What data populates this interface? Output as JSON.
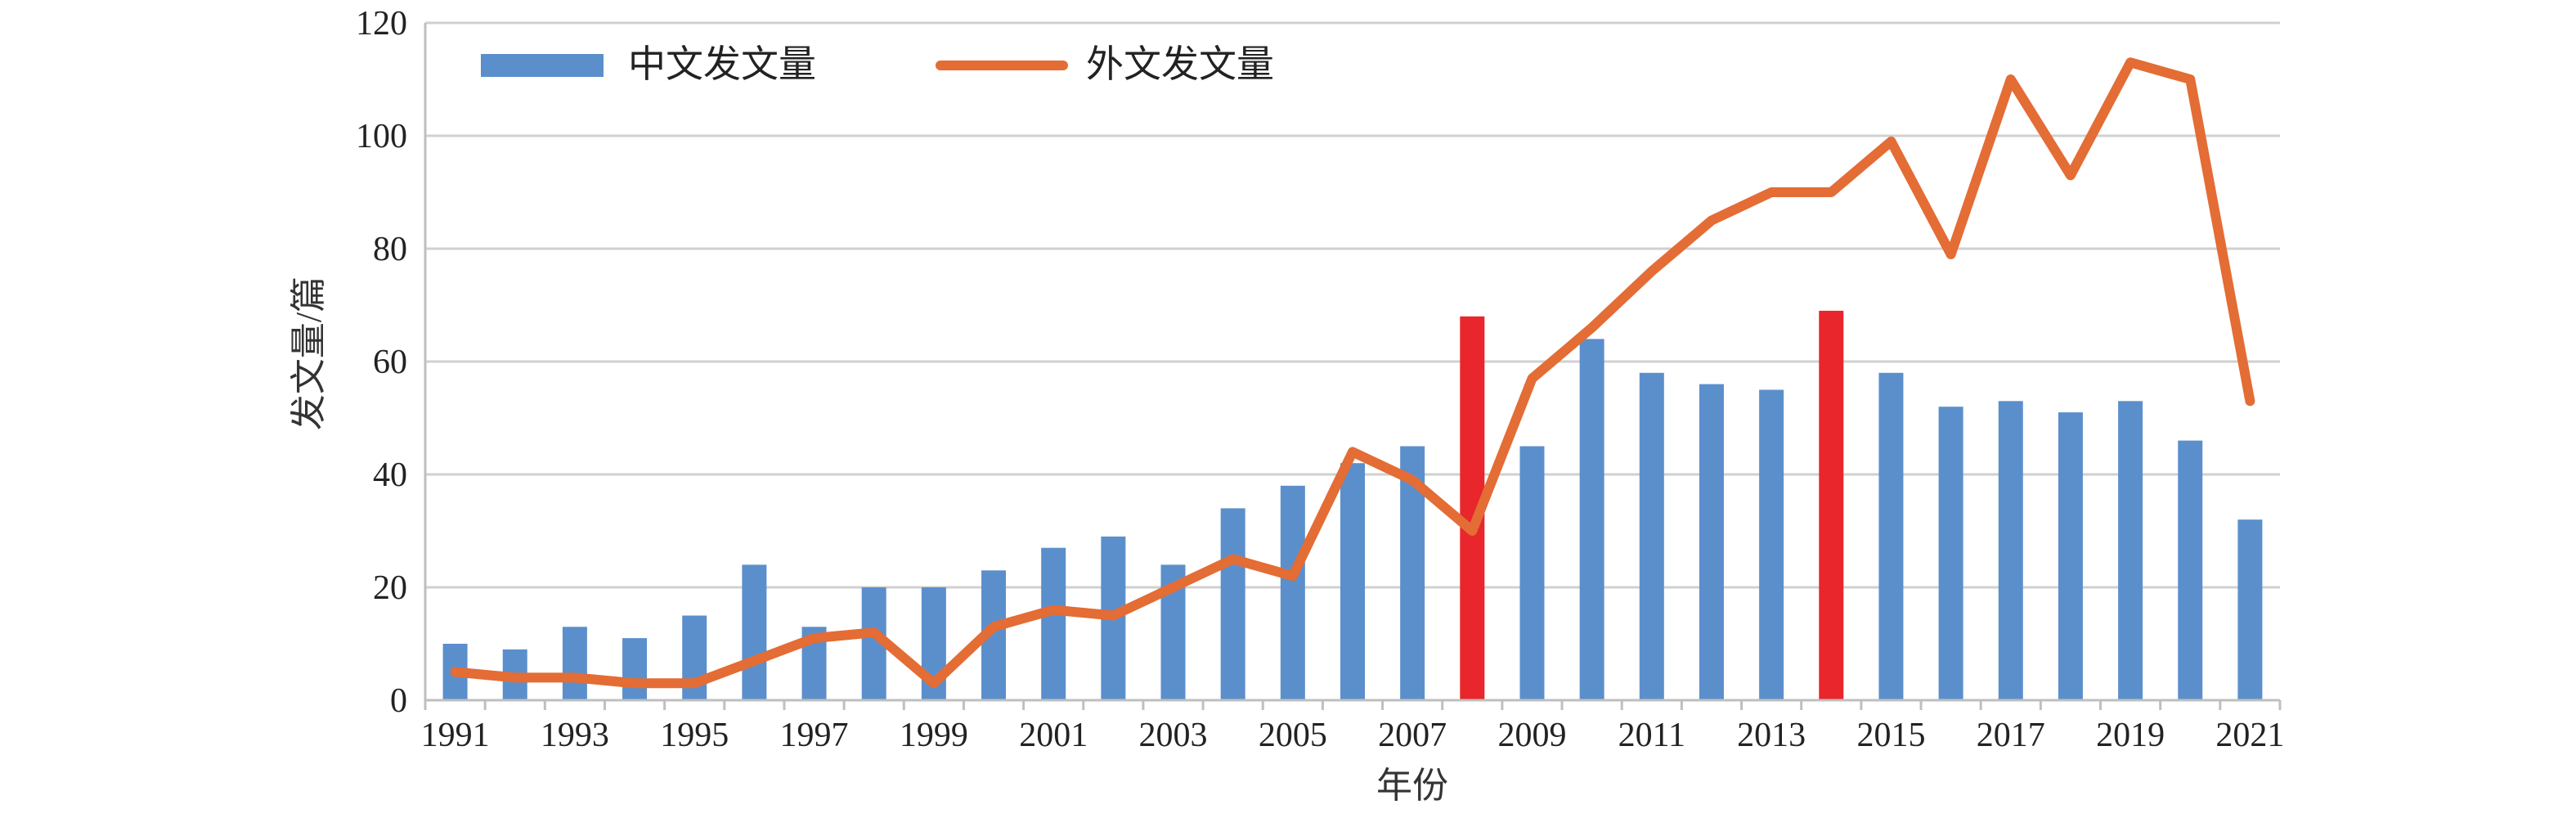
{
  "chart_data": {
    "type": "bar",
    "xlabel": "年份",
    "ylabel": "发文量/篇",
    "ylim": [
      0,
      120
    ],
    "yticks": [
      0,
      20,
      40,
      60,
      80,
      100,
      120
    ],
    "x_tick_labels": [
      "1991",
      "1993",
      "1995",
      "1997",
      "1999",
      "2001",
      "2003",
      "2005",
      "2007",
      "2009",
      "2011",
      "2013",
      "2015",
      "2017",
      "2019",
      "2021"
    ],
    "grid": true,
    "legend_position": "top-left",
    "categories": [
      "1991",
      "1992",
      "1993",
      "1994",
      "1995",
      "1996",
      "1997",
      "1998",
      "1999",
      "2000",
      "2001",
      "2002",
      "2003",
      "2004",
      "2005",
      "2006",
      "2007",
      "2008",
      "2009",
      "2010",
      "2011",
      "2012",
      "2013",
      "2014",
      "2015",
      "2016",
      "2017",
      "2018",
      "2019",
      "2020",
      "2021"
    ],
    "series": [
      {
        "name": "中文发文量",
        "kind": "bar",
        "color": "#5b8fcc",
        "highlight_color": "#e8262b",
        "highlight_categories": [
          "2008",
          "2014"
        ],
        "values": [
          10,
          9,
          13,
          11,
          15,
          24,
          13,
          20,
          20,
          23,
          27,
          29,
          24,
          34,
          38,
          42,
          45,
          68,
          45,
          64,
          58,
          56,
          55,
          69,
          58,
          52,
          53,
          51,
          53,
          46,
          32
        ]
      },
      {
        "name": "外文发文量",
        "kind": "line",
        "color": "#e46c35",
        "values": [
          5,
          4,
          4,
          3,
          3,
          7,
          11,
          12,
          3,
          13,
          16,
          15,
          20,
          25,
          22,
          44,
          39,
          30,
          57,
          66,
          76,
          85,
          90,
          90,
          99,
          79,
          110,
          93,
          113,
          110,
          53
        ]
      }
    ]
  }
}
